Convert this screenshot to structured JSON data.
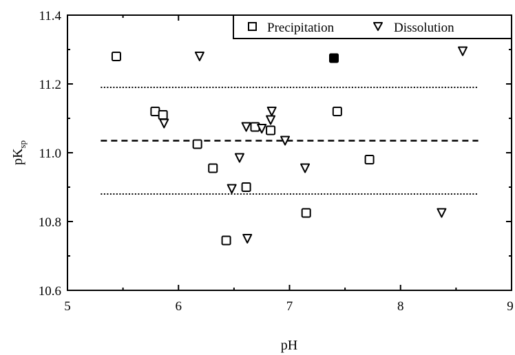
{
  "chart_data": {
    "type": "scatter",
    "xlabel": "pH",
    "ylabel_main": "pK",
    "ylabel_sub": "sp",
    "xlim": [
      5,
      9
    ],
    "ylim": [
      10.6,
      11.4
    ],
    "xticks": [
      "5",
      "6",
      "7",
      "8",
      "9"
    ],
    "yticks": [
      "10.6",
      "10.8",
      "11.0",
      "11.2",
      "11.4"
    ],
    "grid": false,
    "legend_position": "top-right",
    "series": [
      {
        "name": "Precipitation",
        "marker": "square",
        "points": [
          [
            5.44,
            11.28
          ],
          [
            5.79,
            11.12
          ],
          [
            5.86,
            11.11
          ],
          [
            6.17,
            11.025
          ],
          [
            6.31,
            10.955
          ],
          [
            6.43,
            10.745
          ],
          [
            6.61,
            10.9
          ],
          [
            6.69,
            11.075
          ],
          [
            6.83,
            11.065
          ],
          [
            7.15,
            10.825
          ],
          [
            7.43,
            11.12
          ],
          [
            7.72,
            10.98
          ]
        ],
        "filled_points": [
          [
            7.4,
            11.275
          ]
        ]
      },
      {
        "name": "Dissolution",
        "marker": "triangle-down",
        "points": [
          [
            6.19,
            11.28
          ],
          [
            5.87,
            11.085
          ],
          [
            6.55,
            10.985
          ],
          [
            6.48,
            10.895
          ],
          [
            6.61,
            11.075
          ],
          [
            6.62,
            10.75
          ],
          [
            6.75,
            11.07
          ],
          [
            6.83,
            11.095
          ],
          [
            6.84,
            11.12
          ],
          [
            6.96,
            11.035
          ],
          [
            7.14,
            10.955
          ],
          [
            8.37,
            10.825
          ],
          [
            8.56,
            11.295
          ]
        ]
      }
    ],
    "reference_lines": [
      {
        "style": "dotted",
        "y": 11.19,
        "x_range": [
          5.3,
          8.7
        ]
      },
      {
        "style": "dashed",
        "y": 11.035,
        "x_range": [
          5.3,
          8.7
        ]
      },
      {
        "style": "dotted",
        "y": 10.88,
        "x_range": [
          5.3,
          8.7
        ]
      }
    ],
    "colors": {
      "axis": "#000000",
      "marker": "#000000",
      "background": "#ffffff"
    }
  }
}
